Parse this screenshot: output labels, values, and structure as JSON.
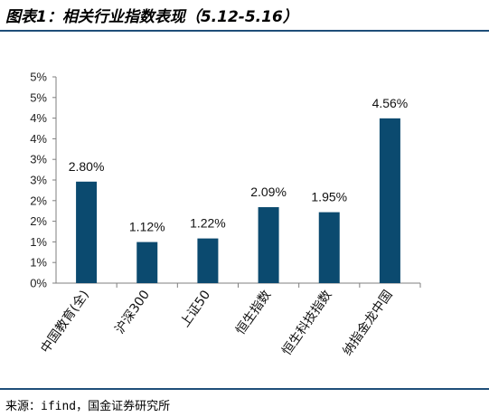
{
  "title": "图表1：相关行业指数表现（5.12-5.16）",
  "source": "来源：ifind，国金证券研究所",
  "colors": {
    "bar": "#0b4a6f",
    "axis": "#7f7f7f",
    "rule": "#1f4e79"
  },
  "chart_data": {
    "type": "bar",
    "categories": [
      "中国教育(全)",
      "沪深300",
      "上证50",
      "恒生指数",
      "恒生科技指数",
      "纳指金龙中国"
    ],
    "values": [
      2.8,
      1.12,
      1.22,
      2.09,
      1.95,
      4.56
    ],
    "data_labels": [
      "2.80%",
      "1.12%",
      "1.22%",
      "2.09%",
      "1.95%",
      "4.56%"
    ],
    "yticks": [
      "0%",
      "1%",
      "1%",
      "2%",
      "2%",
      "3%",
      "3%",
      "4%",
      "4%",
      "5%",
      "5%"
    ],
    "ylim": [
      0,
      5
    ],
    "grid": false,
    "legend": "none"
  }
}
